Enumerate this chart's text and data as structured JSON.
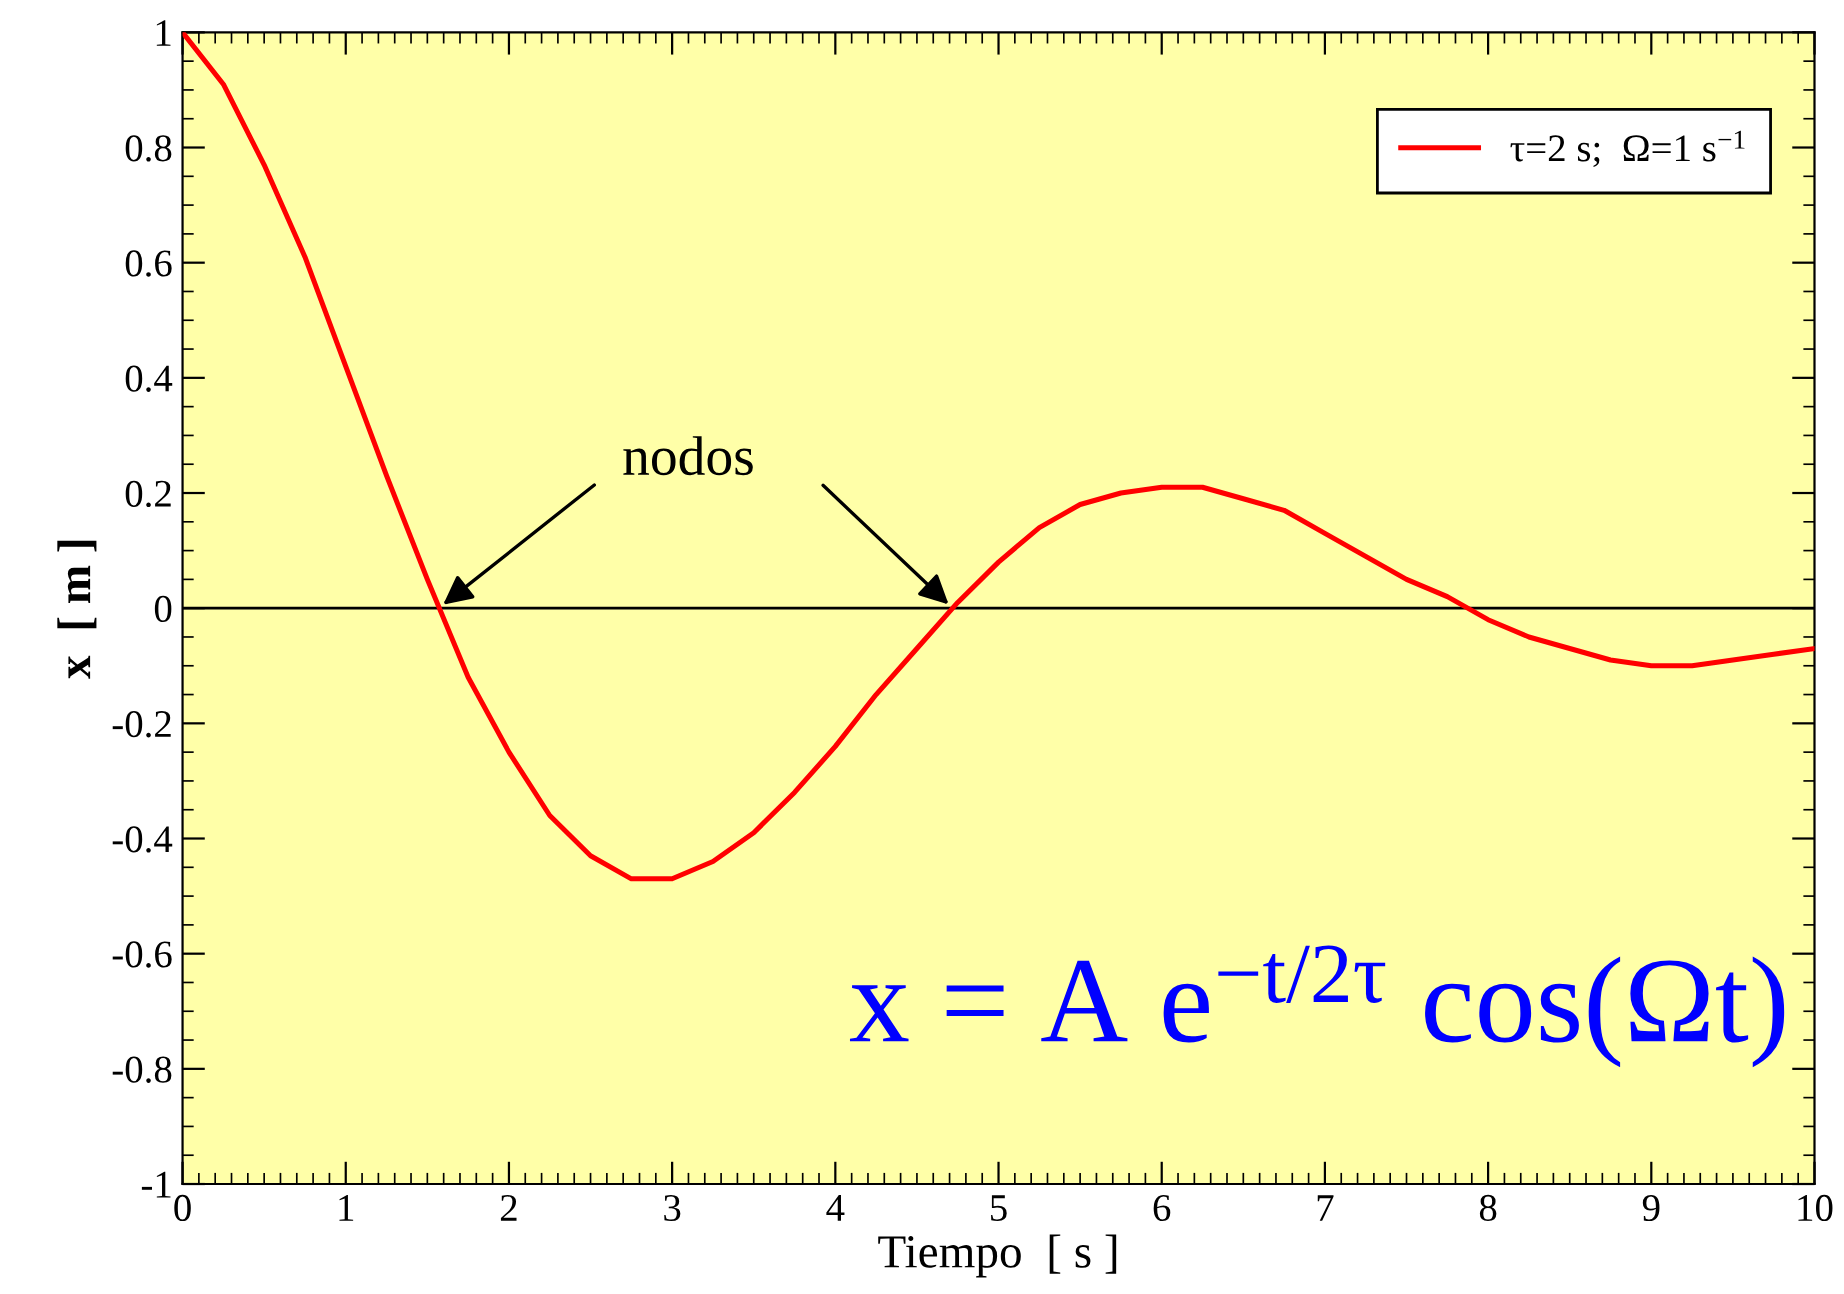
{
  "chart_data": {
    "type": "line",
    "xlabel": "Tiempo  [ s ]",
    "ylabel": "x  [ m ]",
    "x": [
      0,
      0.25,
      0.5,
      0.75,
      1,
      1.25,
      1.5,
      1.75,
      2,
      2.25,
      2.5,
      2.75,
      3,
      3.25,
      3.5,
      3.75,
      4,
      4.25,
      4.5,
      4.75,
      5,
      5.25,
      5.5,
      5.75,
      6,
      6.25,
      6.5,
      6.75,
      7,
      7.25,
      7.5,
      7.75,
      8,
      8.25,
      8.5,
      8.75,
      9,
      9.25,
      9.5,
      9.75,
      10
    ],
    "series": [
      {
        "name": "τ=2 s;  Ω=1 s$^{−1}$",
        "color": "#ff0000",
        "values": [
          1.0,
          0.91,
          0.77,
          0.61,
          0.42,
          0.23,
          0.05,
          -0.12,
          -0.25,
          -0.36,
          -0.43,
          -0.47,
          -0.47,
          -0.44,
          -0.39,
          -0.32,
          -0.24,
          -0.15,
          -0.07,
          0.01,
          0.08,
          0.14,
          0.18,
          0.2,
          0.21,
          0.21,
          0.19,
          0.17,
          0.13,
          0.09,
          0.05,
          0.02,
          -0.02,
          -0.05,
          -0.07,
          -0.09,
          -0.1,
          -0.1,
          -0.09,
          -0.08,
          -0.07
        ]
      }
    ],
    "xlim": [
      0,
      10
    ],
    "xticks": [
      0,
      1,
      2,
      3,
      4,
      5,
      6,
      7,
      8,
      9,
      10
    ],
    "ylim": [
      -1,
      1
    ],
    "yticks": [
      -1,
      -0.8,
      -0.6,
      -0.4,
      -0.2,
      0,
      0.2,
      0.4,
      0.6,
      0.8,
      1
    ],
    "ref_lines": [
      {
        "axis": "y",
        "value": 0,
        "color": "#000000"
      }
    ],
    "annotations": [
      {
        "text": "nodos",
        "x": 1.57,
        "y": 0
      },
      "x = A e$^{−t/2τ}$ cos(Ωt)"
    ],
    "legend": "top right",
    "grid": false,
    "marker": "none",
    "line_style": "solid"
  }
}
